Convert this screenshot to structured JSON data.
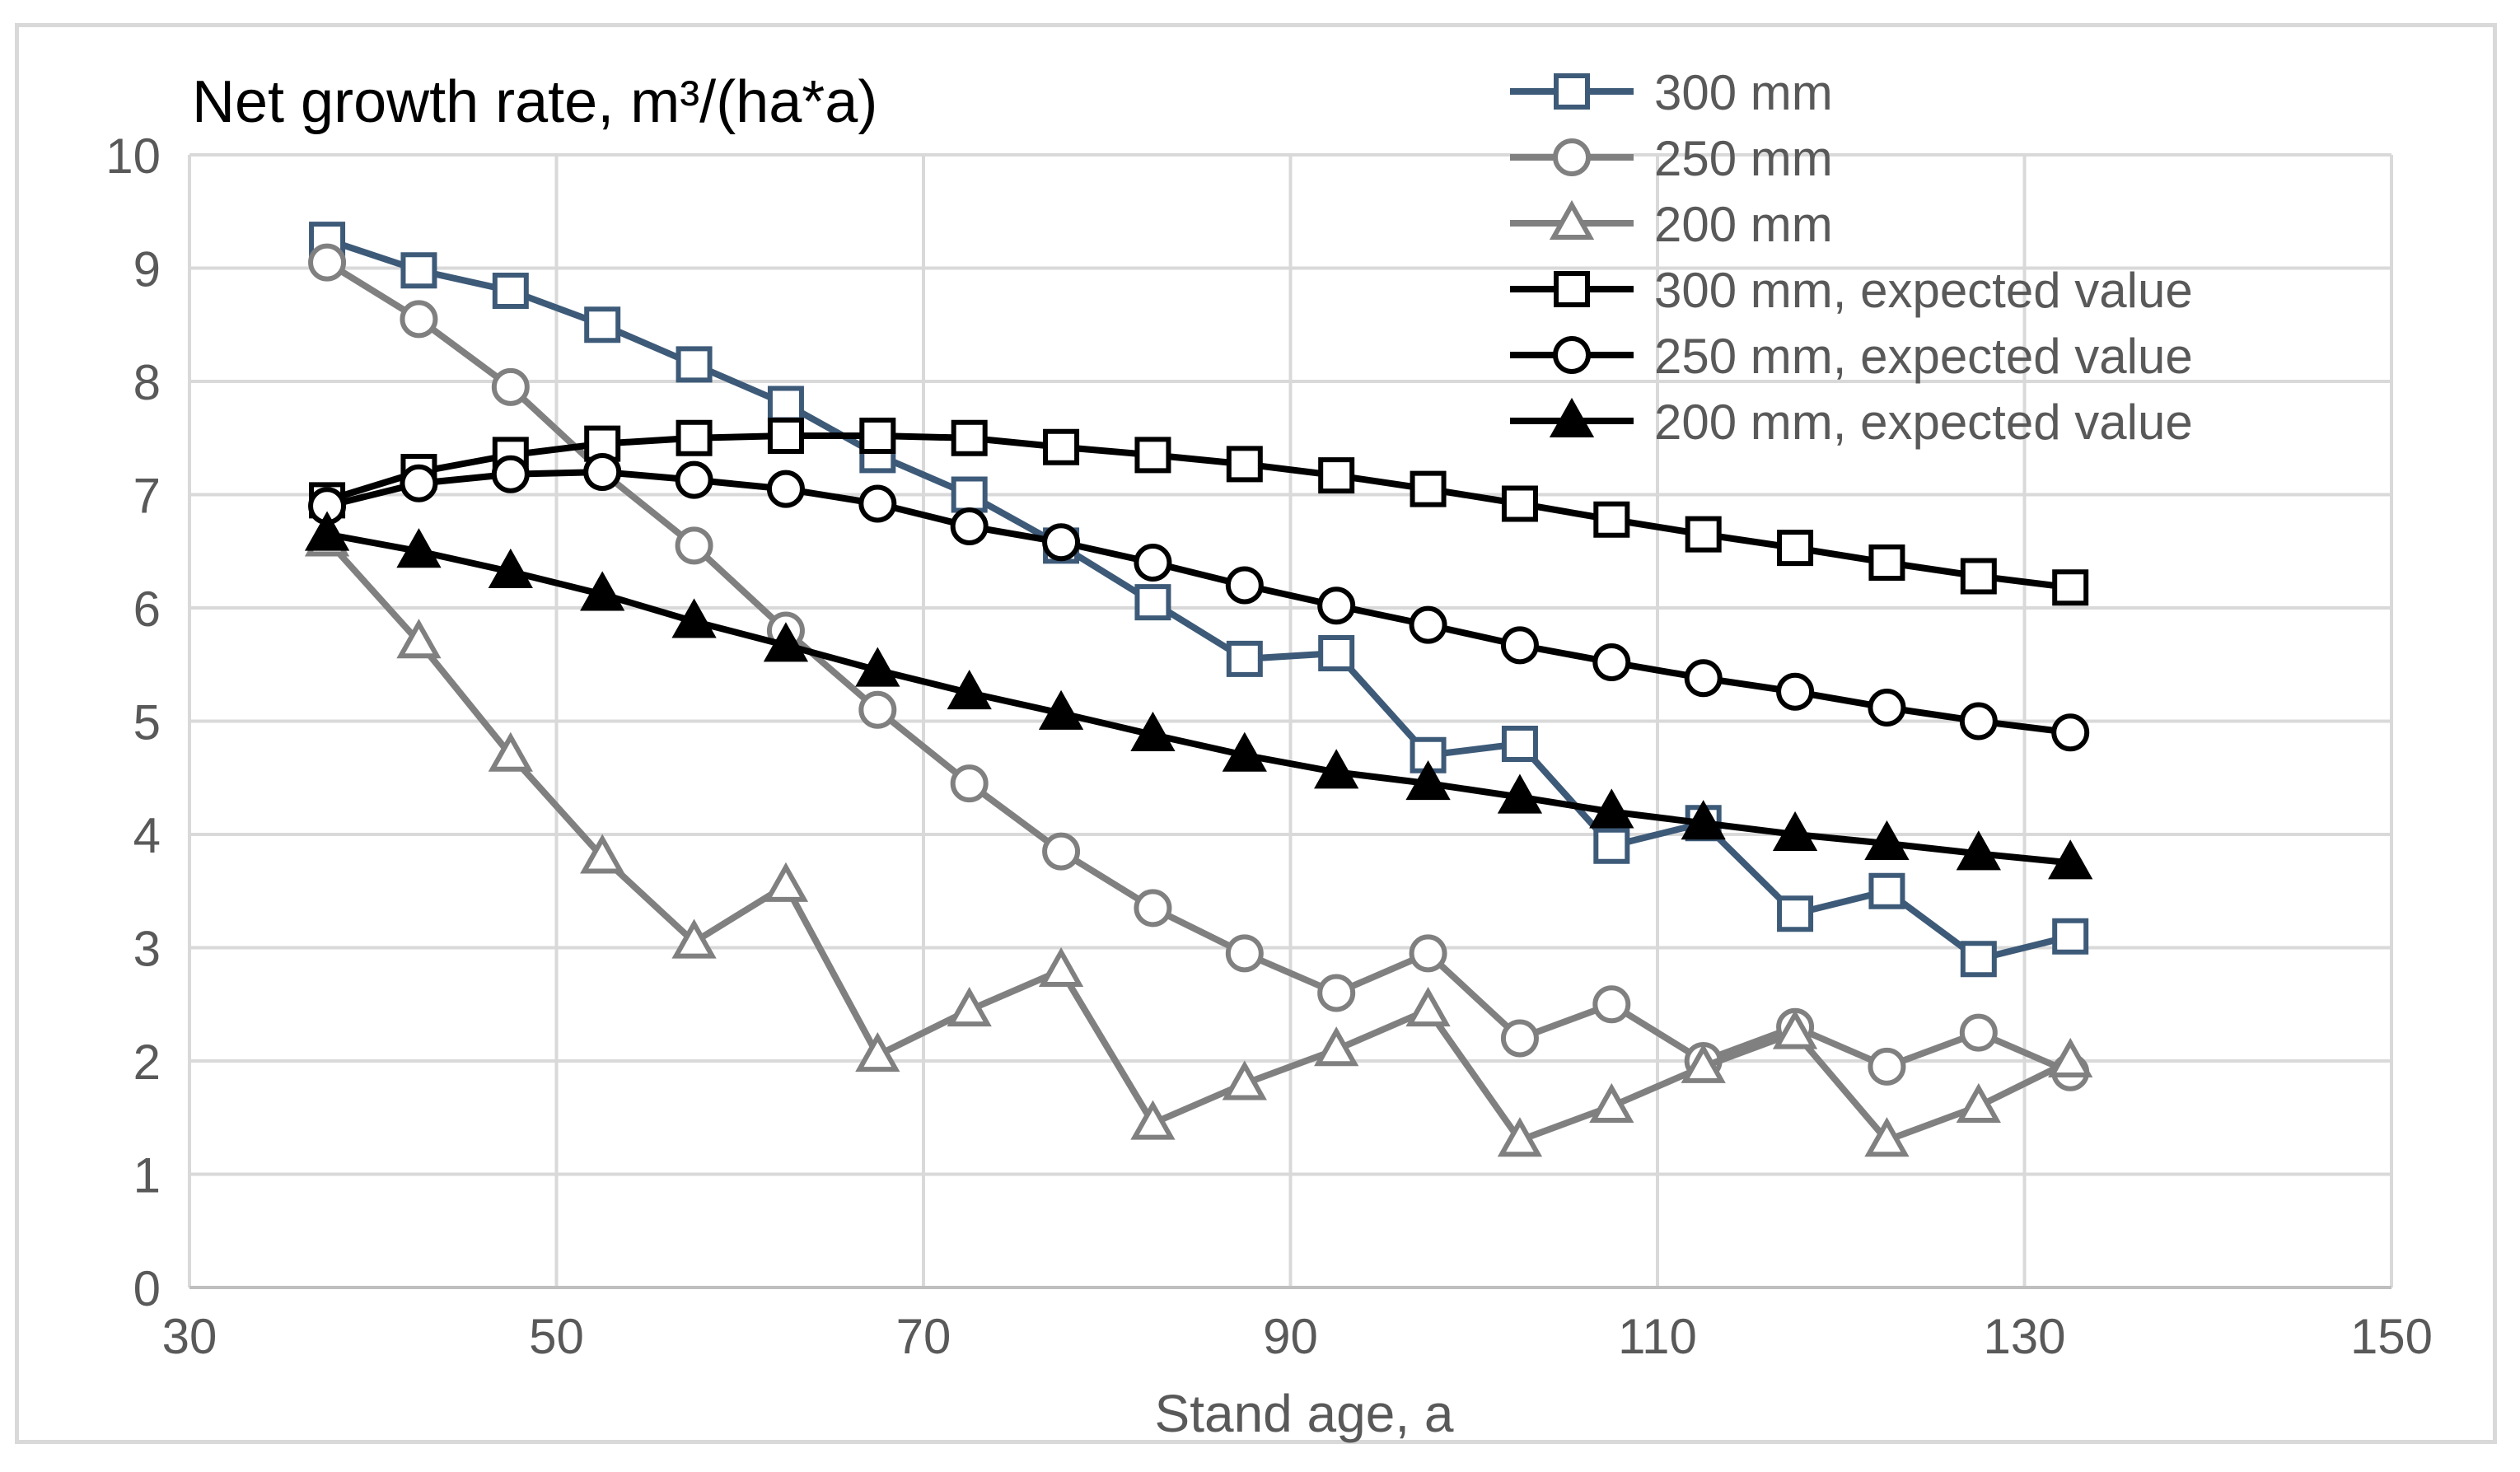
{
  "chart_data": {
    "type": "line",
    "title": "Net growth rate, m³/(ha*a)",
    "xlabel": "Stand age, a",
    "ylabel": "",
    "xlim": [
      30,
      150
    ],
    "ylim": [
      0,
      10
    ],
    "xticks": [
      30,
      50,
      70,
      90,
      110,
      130,
      150
    ],
    "yticks": [
      0,
      1,
      2,
      3,
      4,
      5,
      6,
      7,
      8,
      9,
      10
    ],
    "grid": true,
    "legend_position": "top-right",
    "x": [
      37.5,
      42.5,
      47.5,
      52.5,
      57.5,
      62.5,
      67.5,
      72.5,
      77.5,
      82.5,
      87.5,
      92.5,
      97.5,
      102.5,
      107.5,
      112.5,
      117.5,
      122.5,
      127.5,
      132.5
    ],
    "series": [
      {
        "name": "300 mm",
        "color": "#3d5a78",
        "marker": "square",
        "filled": false,
        "values": [
          9.25,
          8.98,
          8.8,
          8.5,
          8.15,
          7.8,
          7.35,
          7.0,
          6.55,
          6.05,
          5.55,
          5.6,
          4.7,
          4.8,
          3.9,
          4.1,
          3.3,
          3.5,
          2.9,
          3.1
        ]
      },
      {
        "name": "250 mm",
        "color": "#808080",
        "marker": "circle",
        "filled": false,
        "values": [
          9.05,
          8.55,
          7.95,
          7.2,
          6.55,
          5.8,
          5.1,
          4.45,
          3.85,
          3.35,
          2.95,
          2.6,
          2.95,
          2.2,
          2.5,
          2.0,
          2.3,
          1.95,
          2.25,
          1.9
        ]
      },
      {
        "name": "200 mm",
        "color": "#808080",
        "marker": "triangle",
        "filled": false,
        "values": [
          6.6,
          5.7,
          4.7,
          3.8,
          3.05,
          3.55,
          2.05,
          2.45,
          2.8,
          1.45,
          1.8,
          2.1,
          2.45,
          1.3,
          1.6,
          1.95,
          2.25,
          1.3,
          1.6,
          2.0
        ]
      },
      {
        "name": "300 mm, expected value",
        "color": "#000000",
        "marker": "square",
        "filled": false,
        "values": [
          6.95,
          7.2,
          7.35,
          7.45,
          7.5,
          7.52,
          7.52,
          7.5,
          7.42,
          7.35,
          7.27,
          7.17,
          7.05,
          6.92,
          6.78,
          6.65,
          6.53,
          6.4,
          6.28,
          6.18
        ]
      },
      {
        "name": "250 mm, expected value",
        "color": "#000000",
        "marker": "circle",
        "filled": false,
        "values": [
          6.9,
          7.1,
          7.18,
          7.2,
          7.13,
          7.05,
          6.92,
          6.72,
          6.58,
          6.4,
          6.2,
          6.02,
          5.85,
          5.67,
          5.52,
          5.38,
          5.26,
          5.12,
          5.0,
          4.9
        ]
      },
      {
        "name": "200 mm, expected value",
        "color": "#000000",
        "marker": "triangle",
        "filled": true,
        "values": [
          6.65,
          6.5,
          6.32,
          6.12,
          5.88,
          5.67,
          5.45,
          5.25,
          5.07,
          4.88,
          4.7,
          4.55,
          4.45,
          4.33,
          4.2,
          4.1,
          4.0,
          3.92,
          3.83,
          3.75
        ]
      }
    ]
  }
}
